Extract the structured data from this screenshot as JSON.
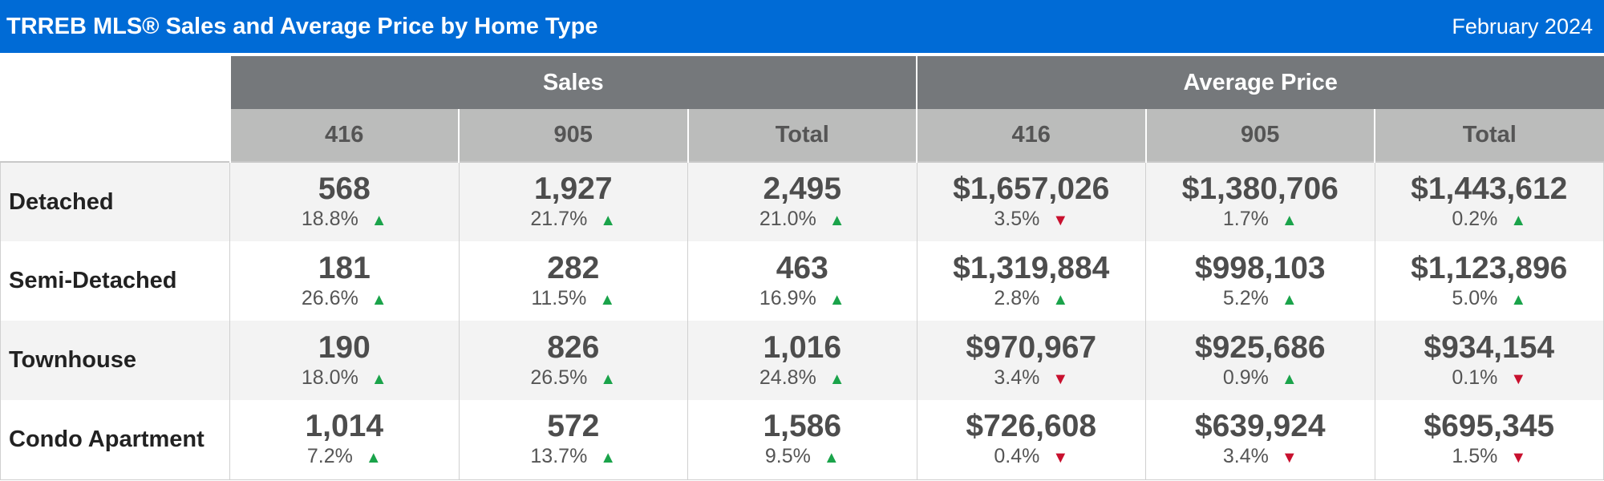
{
  "header": {
    "title": "TRREB MLS® Sales and Average Price by Home Type",
    "date": "February 2024"
  },
  "groups": [
    "Sales",
    "Average Price"
  ],
  "subcolumns": [
    "416",
    "905",
    "Total",
    "416",
    "905",
    "Total"
  ],
  "colors": {
    "title_bar": "#006bd6",
    "group_header": "#75787b",
    "sub_header": "#bbbcbb",
    "up": "#1aa34a",
    "down": "#c8102e"
  },
  "rows": [
    {
      "label": "Detached",
      "cells": [
        {
          "value": "568",
          "pct": "18.8%",
          "trend": "up"
        },
        {
          "value": "1,927",
          "pct": "21.7%",
          "trend": "up"
        },
        {
          "value": "2,495",
          "pct": "21.0%",
          "trend": "up"
        },
        {
          "value": "$1,657,026",
          "pct": "3.5%",
          "trend": "down"
        },
        {
          "value": "$1,380,706",
          "pct": "1.7%",
          "trend": "up"
        },
        {
          "value": "$1,443,612",
          "pct": "0.2%",
          "trend": "up"
        }
      ]
    },
    {
      "label": "Semi-Detached",
      "cells": [
        {
          "value": "181",
          "pct": "26.6%",
          "trend": "up"
        },
        {
          "value": "282",
          "pct": "11.5%",
          "trend": "up"
        },
        {
          "value": "463",
          "pct": "16.9%",
          "trend": "up"
        },
        {
          "value": "$1,319,884",
          "pct": "2.8%",
          "trend": "up"
        },
        {
          "value": "$998,103",
          "pct": "5.2%",
          "trend": "up"
        },
        {
          "value": "$1,123,896",
          "pct": "5.0%",
          "trend": "up"
        }
      ]
    },
    {
      "label": "Townhouse",
      "cells": [
        {
          "value": "190",
          "pct": "18.0%",
          "trend": "up"
        },
        {
          "value": "826",
          "pct": "26.5%",
          "trend": "up"
        },
        {
          "value": "1,016",
          "pct": "24.8%",
          "trend": "up"
        },
        {
          "value": "$970,967",
          "pct": "3.4%",
          "trend": "down"
        },
        {
          "value": "$925,686",
          "pct": "0.9%",
          "trend": "up"
        },
        {
          "value": "$934,154",
          "pct": "0.1%",
          "trend": "down"
        }
      ]
    },
    {
      "label": "Condo Apartment",
      "cells": [
        {
          "value": "1,014",
          "pct": "7.2%",
          "trend": "up"
        },
        {
          "value": "572",
          "pct": "13.7%",
          "trend": "up"
        },
        {
          "value": "1,586",
          "pct": "9.5%",
          "trend": "up"
        },
        {
          "value": "$726,608",
          "pct": "0.4%",
          "trend": "down"
        },
        {
          "value": "$639,924",
          "pct": "3.4%",
          "trend": "down"
        },
        {
          "value": "$695,345",
          "pct": "1.5%",
          "trend": "down"
        }
      ]
    }
  ]
}
